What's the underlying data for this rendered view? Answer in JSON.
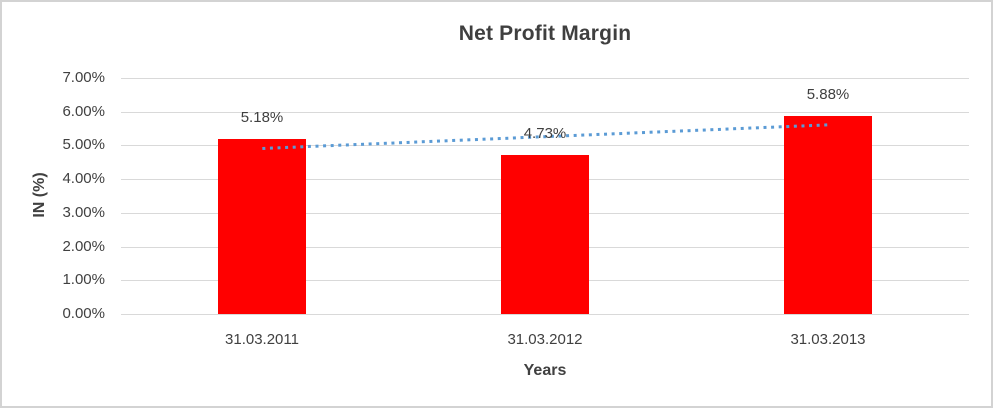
{
  "chart_data": {
    "type": "bar",
    "title": "Net Profit Margin",
    "xlabel": "Years",
    "ylabel": "IN (%)",
    "categories": [
      "31.03.2011",
      "31.03.2012",
      "31.03.2013"
    ],
    "values": [
      5.18,
      4.73,
      5.88
    ],
    "data_labels": [
      "5.18%",
      "4.73%",
      "5.88%"
    ],
    "y_ticks": [
      "0.00%",
      "1.00%",
      "2.00%",
      "3.00%",
      "4.00%",
      "5.00%",
      "6.00%",
      "7.00%"
    ],
    "ylim": [
      0,
      7
    ],
    "grid": true,
    "legend": "none",
    "bar_color": "#ff0000",
    "gridline_color": "#d9d9d9",
    "text_color": "#404040",
    "trendline": {
      "type": "linear",
      "style": "dotted",
      "color": "#5b9bd5",
      "start_value": 4.91,
      "end_value": 5.61
    }
  }
}
